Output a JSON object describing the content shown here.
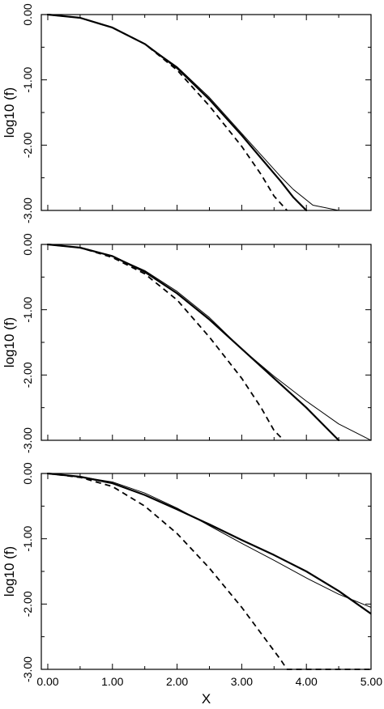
{
  "chart_data": [
    {
      "type": "line",
      "xlabel": "",
      "ylabel": "log10 (f)",
      "xlim": [
        -0.1,
        5.0
      ],
      "ylim": [
        -3.0,
        0.0
      ],
      "x_ticks": [
        0.0,
        1.0,
        2.0,
        3.0,
        4.0,
        5.0
      ],
      "y_ticks": [
        0.0,
        -1.0,
        -2.0,
        -3.0
      ],
      "y_tick_labels": [
        "0.00",
        "-1.00",
        "-2.00",
        "-3.00"
      ],
      "x_tick_labels": [
        "",
        "",
        "",
        "",
        "",
        ""
      ],
      "series": [
        {
          "style": "thick",
          "x": [
            0.0,
            0.5,
            1.0,
            1.5,
            2.0,
            2.5,
            3.0,
            3.3,
            3.6,
            3.8,
            4.0
          ],
          "y": [
            0.0,
            -0.05,
            -0.2,
            -0.45,
            -0.82,
            -1.3,
            -1.85,
            -2.2,
            -2.55,
            -2.8,
            -3.0
          ]
        },
        {
          "style": "thin",
          "x": [
            0.0,
            0.5,
            1.0,
            1.5,
            2.0,
            2.5,
            3.0,
            3.3,
            3.6,
            3.8,
            4.1,
            4.5
          ],
          "y": [
            0.0,
            -0.05,
            -0.2,
            -0.45,
            -0.8,
            -1.27,
            -1.82,
            -2.15,
            -2.48,
            -2.68,
            -2.92,
            -3.0
          ]
        },
        {
          "style": "dashed",
          "x": [
            0.0,
            0.5,
            1.0,
            1.5,
            2.0,
            2.5,
            3.0,
            3.3,
            3.5,
            3.7
          ],
          "y": [
            0.0,
            -0.05,
            -0.2,
            -0.45,
            -0.85,
            -1.4,
            -2.02,
            -2.45,
            -2.78,
            -3.0
          ]
        }
      ]
    },
    {
      "type": "line",
      "xlabel": "",
      "ylabel": "log10 (f)",
      "xlim": [
        -0.1,
        5.0
      ],
      "ylim": [
        -3.0,
        0.0
      ],
      "x_ticks": [
        0.0,
        1.0,
        2.0,
        3.0,
        4.0,
        5.0
      ],
      "y_ticks": [
        0.0,
        -1.0,
        -2.0,
        -3.0
      ],
      "y_tick_labels": [
        "0.00",
        "-1.00",
        "-2.00",
        "-3.00"
      ],
      "x_tick_labels": [
        "",
        "",
        "",
        "",
        "",
        ""
      ],
      "series": [
        {
          "style": "thick",
          "x": [
            0.0,
            0.5,
            1.0,
            1.5,
            2.0,
            2.5,
            3.0,
            3.5,
            4.0,
            4.3,
            4.5
          ],
          "y": [
            0.0,
            -0.05,
            -0.18,
            -0.42,
            -0.75,
            -1.15,
            -1.6,
            -2.05,
            -2.5,
            -2.8,
            -3.0
          ]
        },
        {
          "style": "thin",
          "x": [
            0.0,
            0.5,
            1.0,
            1.5,
            2.0,
            2.5,
            3.0,
            3.5,
            4.0,
            4.5,
            5.0
          ],
          "y": [
            0.0,
            -0.05,
            -0.18,
            -0.4,
            -0.72,
            -1.12,
            -1.6,
            -2.02,
            -2.4,
            -2.75,
            -3.0
          ]
        },
        {
          "style": "dashed",
          "x": [
            0.0,
            0.5,
            1.0,
            1.5,
            2.0,
            2.5,
            3.0,
            3.3,
            3.5,
            3.65
          ],
          "y": [
            0.0,
            -0.05,
            -0.2,
            -0.45,
            -0.85,
            -1.42,
            -2.05,
            -2.5,
            -2.85,
            -3.0
          ]
        }
      ]
    },
    {
      "type": "line",
      "xlabel": "X",
      "ylabel": "log10 (f)",
      "xlim": [
        -0.1,
        5.0
      ],
      "ylim": [
        -3.0,
        0.0
      ],
      "x_ticks": [
        0.0,
        1.0,
        2.0,
        3.0,
        4.0,
        5.0
      ],
      "y_ticks": [
        0.0,
        -1.0,
        -2.0,
        -3.0
      ],
      "y_tick_labels": [
        "0.00",
        "-1.00",
        "-2.00",
        "-3.00"
      ],
      "x_tick_labels": [
        "0.00",
        "1.00",
        "2.00",
        "3.00",
        "4.00",
        "5.00"
      ],
      "series": [
        {
          "style": "thick",
          "x": [
            0.0,
            0.5,
            1.0,
            1.5,
            2.0,
            2.5,
            3.0,
            3.5,
            4.0,
            4.5,
            5.0
          ],
          "y": [
            0.0,
            -0.05,
            -0.15,
            -0.33,
            -0.55,
            -0.78,
            -1.02,
            -1.25,
            -1.5,
            -1.8,
            -2.15
          ]
        },
        {
          "style": "thin",
          "x": [
            0.0,
            0.5,
            1.0,
            1.5,
            2.0,
            2.5,
            3.0,
            3.5,
            4.0,
            4.5,
            5.0
          ],
          "y": [
            0.0,
            -0.05,
            -0.13,
            -0.3,
            -0.53,
            -0.8,
            -1.07,
            -1.33,
            -1.6,
            -1.85,
            -2.05
          ]
        },
        {
          "style": "dashed",
          "x": [
            0.0,
            0.5,
            1.0,
            1.5,
            2.0,
            2.5,
            3.0,
            3.3,
            3.6,
            3.7,
            4.0,
            5.0
          ],
          "y": [
            0.0,
            -0.06,
            -0.2,
            -0.5,
            -0.92,
            -1.45,
            -2.05,
            -2.45,
            -2.85,
            -3.0,
            -3.0,
            -3.0
          ]
        }
      ]
    }
  ]
}
